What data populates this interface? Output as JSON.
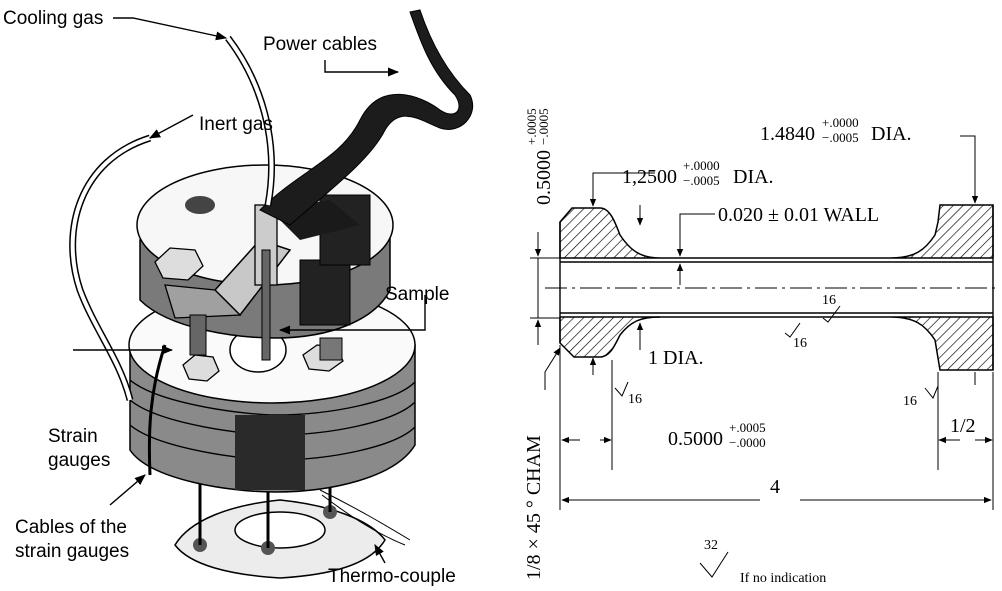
{
  "apparatus": {
    "labels": {
      "cooling_gas": "Cooling gas",
      "power_cables": "Power cables",
      "inert_gas": "Inert gas",
      "sample": "Sample",
      "strain_gauges_1": "Strain",
      "strain_gauges_2": "gauges",
      "cables_1": "Cables of the",
      "cables_2": "strain gauges",
      "thermocouple": "Thermo-couple"
    }
  },
  "drawing": {
    "left_shoulder_height": {
      "value": "0.5000",
      "tol_plus": "+.0005",
      "tol_minus": "−.0005"
    },
    "bore_dia": {
      "value": "1,2500",
      "tol_plus": "+.0000",
      "tol_minus": "−.0005",
      "suffix": "DIA."
    },
    "outer_dia": {
      "value": "1.4840",
      "tol_plus": "+.0000",
      "tol_minus": "−.0005",
      "suffix": "DIA."
    },
    "wall": "0.020 ± 0.01 WALL",
    "inner_dia": "1 DIA.",
    "shoulder_len": {
      "value": "0.5000",
      "tol_plus": "+.0005",
      "tol_minus": "−.0000"
    },
    "right_len": "1/2",
    "total_len": "4",
    "chamfer": "1/8 × 45 ° CHAM",
    "finish_center": "16",
    "finish_bottom": "16",
    "finish_left": "16",
    "finish_right": "16",
    "default_finish_value": "32",
    "default_finish_text": "If no indication"
  }
}
